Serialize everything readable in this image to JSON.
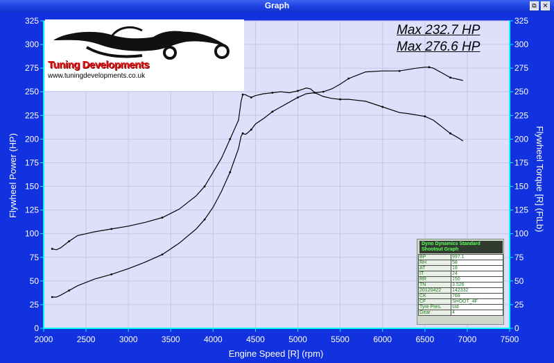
{
  "window": {
    "title": "Graph",
    "button_restore": "⧉",
    "button_close": "✕"
  },
  "logo": {
    "name": "Tuning Developments",
    "url": "www.tuningdevelopments.co.uk"
  },
  "max_labels": [
    "Max 232.7 HP",
    "Max 276.6 HP"
  ],
  "colors": {
    "plot_bg": "#dedffb",
    "frame": "#1232e0",
    "grid": "#c3c6e4",
    "axis_cyan": "#00ffff",
    "line": "#000000"
  },
  "info": {
    "title_lines": [
      "Dyno Dynamics Standard",
      "Shootout Graph"
    ],
    "rows": [
      [
        "BP",
        "997.1"
      ],
      [
        "RH",
        "58"
      ],
      [
        "AT",
        "18"
      ],
      [
        "IT",
        "24"
      ],
      [
        "RR",
        "150"
      ],
      [
        "TN",
        "3.526"
      ],
      [
        "20120422",
        "142332"
      ],
      [
        "CK",
        "768"
      ],
      [
        "CF",
        "SHOOT_4F"
      ],
      [
        "Tyre Pres.",
        "std"
      ],
      [
        "Gear",
        "4"
      ]
    ]
  },
  "chart_data": {
    "type": "line",
    "xlabel": "Engine Speed [R] (rpm)",
    "ylabel": "Flywheel Power (HP)",
    "ylabel_right": "Flywheel Torque [R] (FtLb)",
    "xlim": [
      2000,
      7500
    ],
    "ylim": [
      0,
      325
    ],
    "x_ticks": [
      2000,
      2500,
      3000,
      3500,
      4000,
      4500,
      5000,
      5500,
      6000,
      6500,
      7000,
      7500
    ],
    "y_ticks": [
      0,
      25,
      50,
      75,
      100,
      125,
      150,
      175,
      200,
      225,
      250,
      275,
      300,
      325
    ],
    "grid": true,
    "series": [
      {
        "x": [
          2100,
          2150,
          2200,
          2300,
          2400,
          2600,
          2800,
          3000,
          3200,
          3400,
          3600,
          3800,
          3900,
          4000,
          4100,
          4200,
          4300,
          4330,
          4350,
          4380,
          4400,
          4450,
          4500,
          4600,
          4700,
          4800,
          4900,
          5000,
          5100,
          5150,
          5200,
          5300,
          5400,
          5500,
          5600,
          5800,
          6000,
          6200,
          6300,
          6500,
          6600,
          6700,
          6800,
          6900,
          6950
        ],
        "y": [
          84,
          83,
          85,
          92,
          98,
          102,
          105,
          108,
          112,
          117,
          126,
          140,
          150,
          165,
          180,
          200,
          220,
          240,
          247,
          247,
          246,
          244,
          246,
          248,
          249,
          250,
          249,
          251,
          254,
          253,
          249,
          245,
          243,
          242,
          242,
          240,
          234,
          228,
          227,
          224,
          220,
          213,
          206,
          201,
          198
        ]
      },
      {
        "x": [
          2100,
          2150,
          2200,
          2300,
          2400,
          2600,
          2800,
          3000,
          3200,
          3400,
          3600,
          3800,
          3900,
          4000,
          4100,
          4200,
          4300,
          4330,
          4350,
          4380,
          4400,
          4450,
          4500,
          4600,
          4700,
          4800,
          4900,
          5000,
          5100,
          5200,
          5300,
          5400,
          5500,
          5600,
          5800,
          6000,
          6200,
          6400,
          6500,
          6550,
          6600,
          6700,
          6800,
          6900,
          6950
        ],
        "y": [
          33,
          33,
          35,
          40,
          45,
          52,
          57,
          63,
          70,
          78,
          90,
          105,
          115,
          128,
          145,
          165,
          190,
          203,
          206,
          205,
          206,
          210,
          216,
          222,
          229,
          234,
          239,
          244,
          248,
          249,
          250,
          253,
          258,
          264,
          271,
          272,
          272,
          275,
          276,
          276,
          275,
          270,
          265,
          263,
          262
        ]
      }
    ]
  }
}
